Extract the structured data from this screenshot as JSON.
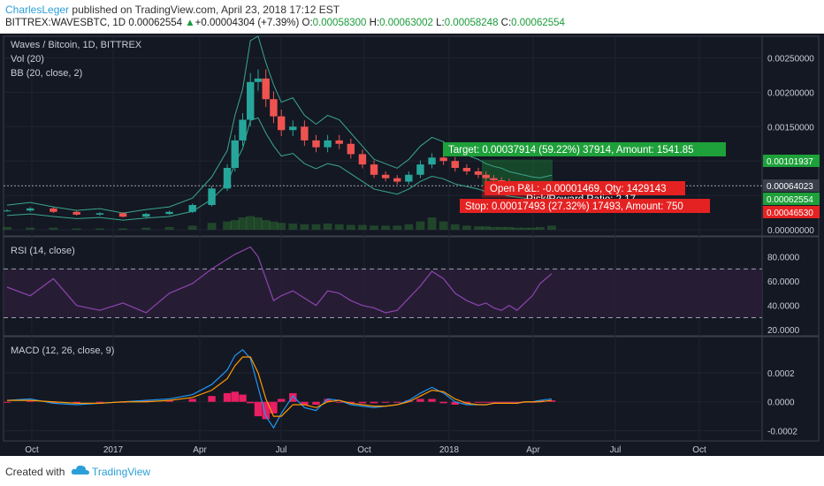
{
  "header": {
    "author": "CharlesLeger",
    "published": "published on TradingView.com, April 23, 2018 17:12 EST",
    "symbol": "BITTREX:WAVESBTC, 1D",
    "last": "0.00062554",
    "change_arrow": "▲",
    "change": "+0.00004304 (+7.39%)",
    "o_label": "O:",
    "o": "0.00058300",
    "h_label": "H:",
    "h": "0.00063002",
    "l_label": "L:",
    "l": "0.00058248",
    "c_label": "C:",
    "c": "0.00062554"
  },
  "legend": {
    "title": "Waves / Bitcoin, 1D, BITTREX",
    "vol": "Vol (20)",
    "bb": "BB (20, close, 2)",
    "rsi": "RSI (14, close)",
    "macd": "MACD (12, 26, close, 9)"
  },
  "position": {
    "target": "Target: 0.00037914 (59.22%) 37914, Amount: 1541.85",
    "pnl": "Open P&L: -0.00001469, Qty: 1429143",
    "rr": "Risk/Reward Ratio: 2.17",
    "stop": "Stop: 0.00017493 (27.32%) 17493, Amount: 750"
  },
  "price_badges": {
    "target": "0.00101937",
    "current_dark": "0.00064023",
    "last": "0.00062554",
    "stop": "0.00046530"
  },
  "colors": {
    "background": "#141823",
    "candle_up": "#26a69a",
    "candle_down": "#ef5350",
    "bb_band": "#3aa68e",
    "rsi_line": "#8e44ad",
    "macd_line": "#2196f3",
    "signal_line": "#ff9800",
    "histogram": "#e91e63",
    "target_green": "#1ea03a",
    "stop_red": "#e52222"
  },
  "footer": {
    "created_with": "Created with",
    "brand": "TradingView"
  },
  "chart_data": [
    {
      "type": "candlestick",
      "title": "Waves / Bitcoin, 1D, BITTREX",
      "y_ticks": [
        "0.00250000",
        "0.00200000",
        "0.00150000",
        "0.00100000",
        "0.00050000",
        "0.00000000"
      ],
      "ylim": [
        0,
        0.0027
      ],
      "x_ticks": [
        "Oct",
        "2017",
        "Apr",
        "Jul",
        "Oct",
        "2018",
        "Apr",
        "Jul",
        "Oct"
      ],
      "x": [
        0,
        12,
        24,
        36,
        48,
        60,
        72,
        84,
        96,
        106,
        114,
        118,
        122,
        126,
        130,
        134,
        138,
        142,
        148,
        154,
        160,
        166,
        172,
        178,
        184,
        190,
        196,
        202,
        208,
        214,
        220,
        226,
        232,
        238,
        244,
        248,
        252,
        256,
        260,
        264,
        268,
        272,
        276,
        282
      ],
      "values": [
        0.00028,
        0.00031,
        0.00026,
        0.00022,
        0.00024,
        0.00019,
        0.00023,
        0.00026,
        0.00036,
        0.0006,
        0.0009,
        0.0013,
        0.0016,
        0.00215,
        0.0022,
        0.0019,
        0.00165,
        0.00145,
        0.0015,
        0.0013,
        0.0012,
        0.0013,
        0.00125,
        0.0011,
        0.00095,
        0.0008,
        0.00075,
        0.0007,
        0.0008,
        0.00095,
        0.00105,
        0.001,
        0.0009,
        0.00085,
        0.0008,
        0.00075,
        0.00072,
        0.0007,
        0.00066,
        0.00064,
        0.00062,
        0.0006,
        0.00059,
        0.00062
      ],
      "volume": [
        4e-05,
        3e-05,
        3e-05,
        2e-05,
        2e-05,
        2e-05,
        3e-05,
        4e-05,
        6e-05,
        0.0001,
        0.00012,
        0.00014,
        0.00018,
        0.0002,
        0.00018,
        0.00014,
        0.00012,
        0.0001,
        9e-05,
        8e-05,
        8e-05,
        9e-05,
        8e-05,
        7e-05,
        7e-05,
        6e-05,
        6e-05,
        6e-05,
        8e-05,
        0.00012,
        0.00018,
        0.00012,
        8e-05,
        6e-05,
        5e-05,
        5e-05,
        4e-05,
        4e-05,
        4e-05,
        3e-05,
        3e-05,
        3e-05,
        4e-05,
        6e-05
      ]
    },
    {
      "type": "line",
      "title": "RSI (14, close)",
      "y_ticks": [
        "80.0000",
        "60.0000",
        "40.0000",
        "20.0000"
      ],
      "ylim": [
        18,
        92
      ],
      "levels": [
        70,
        30
      ],
      "x": [
        0,
        12,
        24,
        36,
        48,
        60,
        72,
        84,
        96,
        106,
        114,
        118,
        122,
        126,
        130,
        134,
        138,
        142,
        148,
        154,
        160,
        166,
        172,
        178,
        184,
        190,
        196,
        202,
        208,
        214,
        220,
        226,
        232,
        238,
        244,
        248,
        252,
        256,
        260,
        264,
        268,
        272,
        276,
        282
      ],
      "values": [
        55,
        48,
        62,
        40,
        36,
        42,
        34,
        50,
        58,
        70,
        78,
        82,
        85,
        88,
        80,
        62,
        44,
        48,
        52,
        46,
        40,
        52,
        50,
        44,
        40,
        38,
        34,
        36,
        46,
        56,
        68,
        62,
        50,
        44,
        40,
        42,
        38,
        36,
        40,
        36,
        42,
        48,
        58,
        66
      ]
    },
    {
      "type": "line",
      "title": "MACD (12, 26, close, 9)",
      "y_ticks": [
        "0.0002",
        "0.0000",
        "-0.0002"
      ],
      "ylim": [
        -0.00024,
        0.00042
      ],
      "x": [
        0,
        12,
        24,
        36,
        48,
        60,
        72,
        84,
        96,
        106,
        114,
        118,
        122,
        126,
        130,
        134,
        138,
        142,
        148,
        154,
        160,
        166,
        172,
        178,
        184,
        190,
        196,
        202,
        208,
        214,
        220,
        226,
        232,
        238,
        244,
        248,
        252,
        256,
        260,
        264,
        268,
        272,
        276,
        282
      ],
      "series": [
        {
          "name": "MACD",
          "values": [
            1e-05,
            2e-05,
            -1e-05,
            -2e-05,
            -1e-05,
            0.0,
            1e-05,
            2e-05,
            5e-05,
            0.00012,
            0.00022,
            0.00032,
            0.00036,
            0.0003,
            0.0001,
            -0.0001,
            -0.00018,
            -8e-05,
            4e-05,
            -4e-05,
            -6e-05,
            2e-05,
            1e-05,
            -2e-05,
            -3e-05,
            -4e-05,
            -3e-05,
            -2e-05,
            1e-05,
            6e-05,
            0.0001,
            6e-05,
            0.0,
            -2e-05,
            -2e-05,
            -2e-05,
            -1e-05,
            -1e-05,
            -1e-05,
            -1e-05,
            0.0,
            0.0,
            1e-05,
            2e-05
          ]
        },
        {
          "name": "Signal",
          "values": [
            1e-05,
            1e-05,
            0.0,
            -1e-05,
            -1e-05,
            0.0,
            0.0,
            1e-05,
            3e-05,
            8e-05,
            0.00016,
            0.00025,
            0.00031,
            0.00031,
            0.0002,
            2e-05,
            -0.0001,
            -0.0001,
            -2e-05,
            -2e-05,
            -4e-05,
            0.0,
            1e-05,
            -1e-05,
            -2e-05,
            -3e-05,
            -3e-05,
            -2e-05,
            0.0,
            4e-05,
            8e-05,
            7e-05,
            2e-05,
            -1e-05,
            -2e-05,
            -2e-05,
            -1e-05,
            -1e-05,
            -1e-05,
            -1e-05,
            0.0,
            0.0,
            0.0,
            1e-05
          ]
        },
        {
          "name": "Histogram",
          "values": [
            0.0,
            1e-05,
            -1e-05,
            -1e-05,
            0.0,
            0.0,
            1e-05,
            1e-05,
            2e-05,
            4e-05,
            6e-05,
            7e-05,
            5e-05,
            -1e-05,
            -0.0001,
            -0.00012,
            -8e-05,
            2e-05,
            6e-05,
            -2e-05,
            -2e-05,
            2e-05,
            0.0,
            -1e-05,
            -1e-05,
            -1e-05,
            0.0,
            0.0,
            1e-05,
            2e-05,
            2e-05,
            -1e-05,
            -2e-05,
            -1e-05,
            0.0,
            0.0,
            0.0,
            0.0,
            0.0,
            0.0,
            0.0,
            0.0,
            1e-05,
            1e-05
          ]
        }
      ]
    }
  ]
}
